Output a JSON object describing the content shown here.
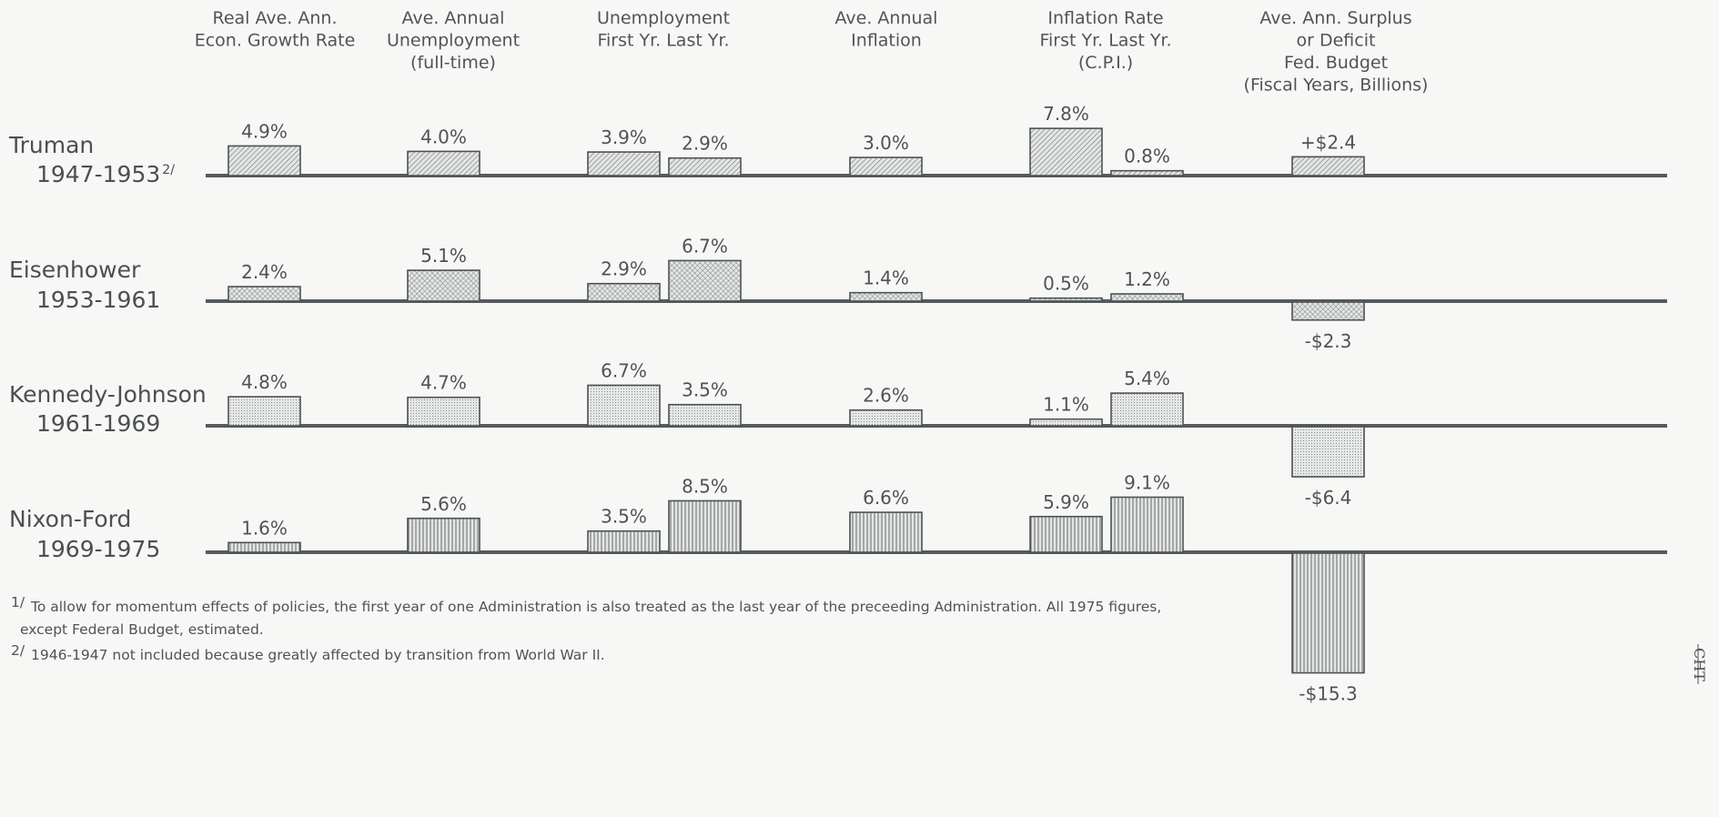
{
  "chart_data": {
    "type": "bar",
    "columns": [
      {
        "lines": [
          "Real Ave. Ann.",
          "Econ. Growth Rate"
        ]
      },
      {
        "lines": [
          "Ave. Annual",
          "Unemployment",
          "(full-time)"
        ]
      },
      {
        "lines": [
          "Unemployment",
          "First Yr.   Last Yr."
        ]
      },
      {
        "lines": [
          "Ave. Annual",
          "Inflation"
        ]
      },
      {
        "lines": [
          "Inflation Rate",
          "First Yr.  Last Yr.",
          "(C.P.I.)"
        ]
      },
      {
        "lines": [
          "Ave. Ann. Surplus",
          "or Deficit",
          "Fed. Budget",
          "(Fiscal Years, Billions)"
        ]
      }
    ],
    "rows": [
      {
        "name": "Truman",
        "years": "1947-1953",
        "years_note": "2/",
        "values": [
          4.9,
          4.0,
          3.9,
          2.9,
          3.0,
          7.8,
          0.8,
          2.4
        ],
        "labels": [
          "4.9%",
          "4.0%",
          "3.9%",
          "2.9%",
          "3.0%",
          "7.8%",
          "0.8%",
          "+$2.4"
        ]
      },
      {
        "name": "Eisenhower",
        "years": "1953-1961",
        "years_note": "",
        "values": [
          2.4,
          5.1,
          2.9,
          6.7,
          1.4,
          0.5,
          1.2,
          -2.3
        ],
        "labels": [
          "2.4%",
          "5.1%",
          "2.9%",
          "6.7%",
          "1.4%",
          "0.5%",
          "1.2%",
          "-$2.3"
        ]
      },
      {
        "name": "Kennedy-Johnson",
        "years": "1961-1969",
        "years_note": "",
        "values": [
          4.8,
          4.7,
          6.7,
          3.5,
          2.6,
          1.1,
          5.4,
          -6.4
        ],
        "labels": [
          "4.8%",
          "4.7%",
          "6.7%",
          "3.5%",
          "2.6%",
          "1.1%",
          "5.4%",
          "-$6.4"
        ]
      },
      {
        "name": "Nixon-Ford",
        "years": "1969-1975",
        "years_note": "",
        "values": [
          1.6,
          5.6,
          3.5,
          8.5,
          6.6,
          5.9,
          9.1,
          -15.3
        ],
        "labels": [
          "1.6%",
          "5.6%",
          "3.5%",
          "8.5%",
          "6.6%",
          "5.9%",
          "9.1%",
          "-$15.3"
        ]
      }
    ],
    "grid": false,
    "legend": "none"
  },
  "footnotes": [
    {
      "mark": "1/",
      "lines": [
        "To allow for momentum effects of policies, the first year of one Administration is also treated as the last year of the preceeding Administration. All 1975 figures,",
        "except Federal Budget, estimated."
      ]
    },
    {
      "mark": "2/",
      "lines": [
        "1946-1947 not included because greatly affected by transition from World War II."
      ]
    }
  ],
  "stamp": "CHT",
  "colors": {
    "background": "#f7f8f6",
    "baseline": "#555a5c",
    "bar_fill": "#e4e6e3",
    "bar_stroke": "#4d5254",
    "ink": "#4b4f51",
    "hatch": "#6f7476"
  }
}
